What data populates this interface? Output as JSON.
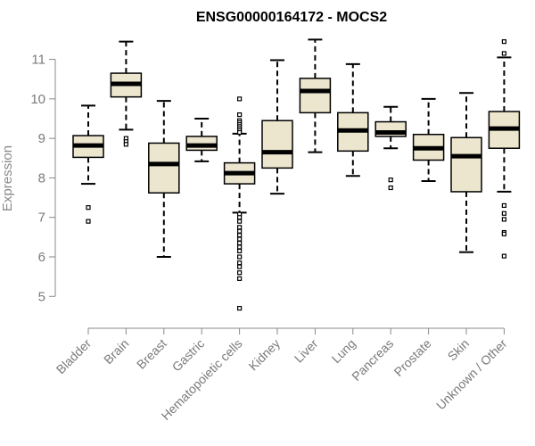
{
  "chart_data": {
    "type": "boxplot",
    "title": "ENSG00000164172 - MOCS2",
    "xlabel": "",
    "ylabel": "Expression",
    "ylim": [
      4.6,
      11.6
    ],
    "yticks": [
      5,
      6,
      7,
      8,
      9,
      10,
      11
    ],
    "colors": {
      "box_fill": "#ede6cf",
      "box_stroke": "#000000",
      "axis": "#8a8a8a",
      "text": "#7a7a7a"
    },
    "categories": [
      "Bladder",
      "Brain",
      "Breast",
      "Gastric",
      "Hematopoietic cells",
      "Kidney",
      "Liver",
      "Lung",
      "Pancreas",
      "Prostate",
      "Skin",
      "Unknown / Other"
    ],
    "boxes": [
      {
        "name": "Bladder",
        "whisker_low": 7.85,
        "q1": 8.52,
        "median": 8.82,
        "q3": 9.07,
        "whisker_high": 9.83,
        "outliers": [
          7.25,
          6.9
        ]
      },
      {
        "name": "Brain",
        "whisker_low": 9.22,
        "q1": 10.05,
        "median": 10.38,
        "q3": 10.65,
        "whisker_high": 11.45,
        "outliers": [
          9.0,
          8.92,
          8.85
        ]
      },
      {
        "name": "Breast",
        "whisker_low": 6.0,
        "q1": 7.62,
        "median": 8.35,
        "q3": 8.88,
        "whisker_high": 9.95,
        "outliers": []
      },
      {
        "name": "Gastric",
        "whisker_low": 8.42,
        "q1": 8.7,
        "median": 8.82,
        "q3": 9.05,
        "whisker_high": 9.5,
        "outliers": []
      },
      {
        "name": "Hematopoietic cells",
        "whisker_low": 7.12,
        "q1": 7.85,
        "median": 8.12,
        "q3": 8.38,
        "whisker_high": 9.12,
        "outliers": [
          10.0,
          9.6,
          9.45,
          9.4,
          9.35,
          9.3,
          9.25,
          9.2,
          9.15,
          7.08,
          7.0,
          6.9,
          6.75,
          6.65,
          6.55,
          6.45,
          6.35,
          6.25,
          6.15,
          6.0,
          5.85,
          5.75,
          5.6,
          5.45,
          4.7
        ]
      },
      {
        "name": "Kidney",
        "whisker_low": 7.6,
        "q1": 8.25,
        "median": 8.65,
        "q3": 9.45,
        "whisker_high": 10.98,
        "outliers": []
      },
      {
        "name": "Liver",
        "whisker_low": 8.65,
        "q1": 9.65,
        "median": 10.2,
        "q3": 10.52,
        "whisker_high": 11.5,
        "outliers": []
      },
      {
        "name": "Lung",
        "whisker_low": 8.05,
        "q1": 8.68,
        "median": 9.2,
        "q3": 9.65,
        "whisker_high": 10.88,
        "outliers": []
      },
      {
        "name": "Pancreas",
        "whisker_low": 8.75,
        "q1": 9.05,
        "median": 9.15,
        "q3": 9.42,
        "whisker_high": 9.8,
        "outliers": [
          7.95,
          7.75
        ]
      },
      {
        "name": "Prostate",
        "whisker_low": 7.92,
        "q1": 8.45,
        "median": 8.75,
        "q3": 9.1,
        "whisker_high": 10.0,
        "outliers": []
      },
      {
        "name": "Skin",
        "whisker_low": 6.12,
        "q1": 7.65,
        "median": 8.55,
        "q3": 9.02,
        "whisker_high": 10.15,
        "outliers": []
      },
      {
        "name": "Unknown / Other",
        "whisker_low": 7.65,
        "q1": 8.75,
        "median": 9.25,
        "q3": 9.68,
        "whisker_high": 11.05,
        "outliers": [
          11.45,
          11.15,
          7.3,
          7.1,
          6.95,
          6.62,
          6.58,
          6.02
        ]
      }
    ]
  }
}
